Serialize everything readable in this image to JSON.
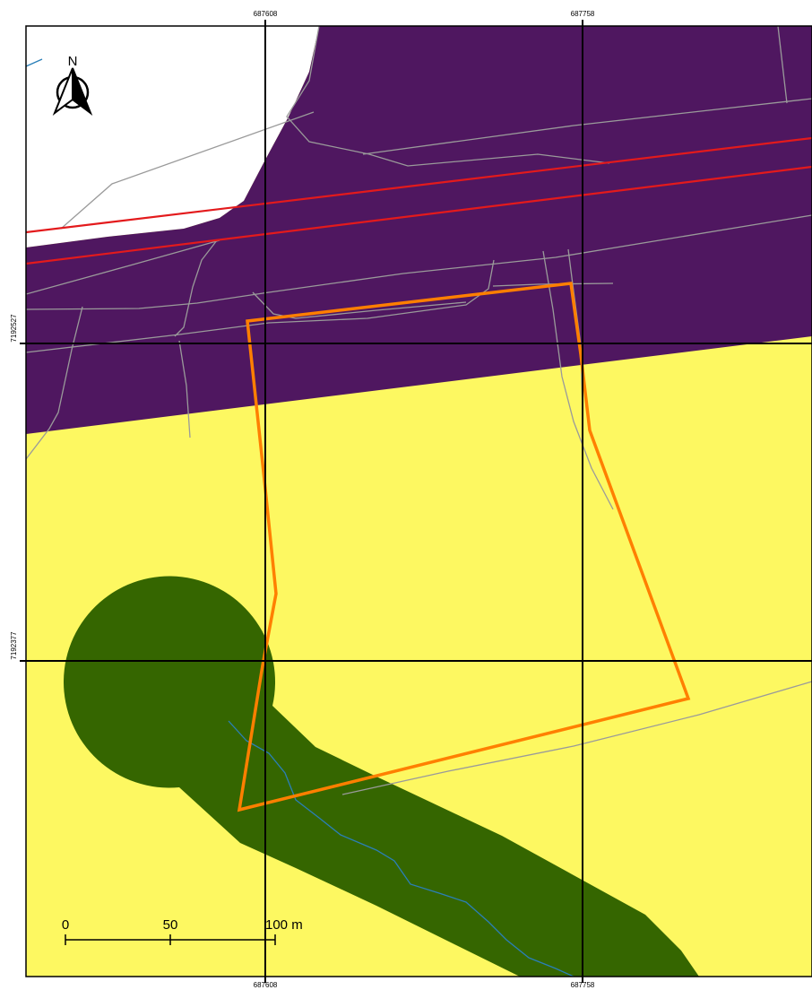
{
  "map": {
    "grid": {
      "x_labels": [
        "687608",
        "687758"
      ],
      "y_labels": [
        "7192527",
        "7192377"
      ]
    },
    "north_arrow": {
      "label": "N"
    },
    "scale_bar": {
      "ticks": [
        "0",
        "50",
        "100 m"
      ]
    },
    "colors": {
      "purple_zone": "#4f1760",
      "yellow_zone": "#fdf861",
      "green_buffer": "#356600",
      "boundary": "#ff7f00",
      "rail": "#e31a1c",
      "roads": "#9a9a9a",
      "stream": "#2a7fb8",
      "grid": "#000000"
    }
  }
}
